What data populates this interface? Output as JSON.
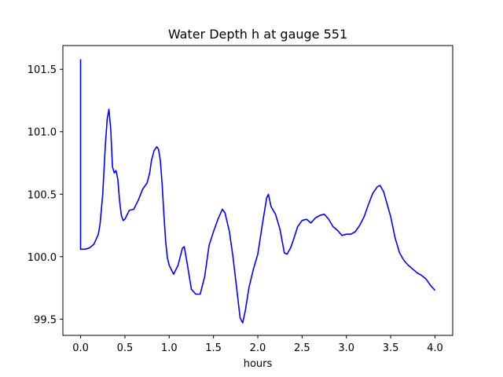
{
  "chart_data": {
    "type": "line",
    "title": "Water Depth h at gauge 551",
    "xlabel": "hours",
    "ylabel": "",
    "xlim": [
      -0.2,
      4.2
    ],
    "ylim": [
      99.37,
      101.69
    ],
    "xticks": [
      0.0,
      0.5,
      1.0,
      1.5,
      2.0,
      2.5,
      3.0,
      3.5,
      4.0
    ],
    "xtick_labels": [
      "0.0",
      "0.5",
      "1.0",
      "1.5",
      "2.0",
      "2.5",
      "3.0",
      "3.5",
      "4.0"
    ],
    "yticks": [
      99.5,
      100.0,
      100.5,
      101.0,
      101.5
    ],
    "ytick_labels": [
      "99.5",
      "100.0",
      "100.5",
      "101.0",
      "101.5"
    ],
    "grid": false,
    "series": [
      {
        "color": "#0000ff",
        "x": [
          0.0,
          0.0,
          0.0,
          0.05,
          0.1,
          0.15,
          0.2,
          0.22,
          0.25,
          0.28,
          0.3,
          0.32,
          0.34,
          0.36,
          0.38,
          0.4,
          0.42,
          0.44,
          0.46,
          0.48,
          0.5,
          0.55,
          0.6,
          0.65,
          0.7,
          0.75,
          0.78,
          0.8,
          0.83,
          0.86,
          0.88,
          0.9,
          0.92,
          0.94,
          0.96,
          0.98,
          1.0,
          1.05,
          1.1,
          1.15,
          1.17,
          1.2,
          1.25,
          1.3,
          1.35,
          1.4,
          1.45,
          1.5,
          1.55,
          1.6,
          1.63,
          1.68,
          1.72,
          1.76,
          1.8,
          1.83,
          1.86,
          1.9,
          1.95,
          2.0,
          2.05,
          2.1,
          2.12,
          2.15,
          2.2,
          2.25,
          2.3,
          2.33,
          2.37,
          2.4,
          2.45,
          2.5,
          2.55,
          2.6,
          2.65,
          2.7,
          2.75,
          2.8,
          2.85,
          2.9,
          2.95,
          3.0,
          3.05,
          3.1,
          3.15,
          3.2,
          3.25,
          3.3,
          3.35,
          3.38,
          3.42,
          3.46,
          3.5,
          3.55,
          3.6,
          3.65,
          3.7,
          3.75,
          3.8,
          3.85,
          3.9,
          3.95,
          4.0
        ],
        "y": [
          101.58,
          100.2,
          100.06,
          100.06,
          100.07,
          100.1,
          100.18,
          100.26,
          100.5,
          100.9,
          101.1,
          101.18,
          101.02,
          100.72,
          100.67,
          100.69,
          100.62,
          100.45,
          100.33,
          100.29,
          100.3,
          100.37,
          100.38,
          100.45,
          100.54,
          100.59,
          100.67,
          100.77,
          100.85,
          100.88,
          100.86,
          100.77,
          100.58,
          100.34,
          100.12,
          99.99,
          99.93,
          99.86,
          99.93,
          100.07,
          100.08,
          99.96,
          99.74,
          99.7,
          99.7,
          99.84,
          100.09,
          100.2,
          100.3,
          100.38,
          100.35,
          100.2,
          100.0,
          99.76,
          99.51,
          99.47,
          99.57,
          99.75,
          99.9,
          100.02,
          100.25,
          100.47,
          100.5,
          100.4,
          100.34,
          100.22,
          100.03,
          100.02,
          100.07,
          100.13,
          100.24,
          100.29,
          100.3,
          100.27,
          100.31,
          100.33,
          100.34,
          100.3,
          100.24,
          100.21,
          100.17,
          100.18,
          100.18,
          100.2,
          100.25,
          100.32,
          100.42,
          100.51,
          100.56,
          100.57,
          100.52,
          100.42,
          100.32,
          100.15,
          100.03,
          99.97,
          99.93,
          99.9,
          99.87,
          99.85,
          99.82,
          99.77,
          99.73
        ]
      }
    ]
  }
}
